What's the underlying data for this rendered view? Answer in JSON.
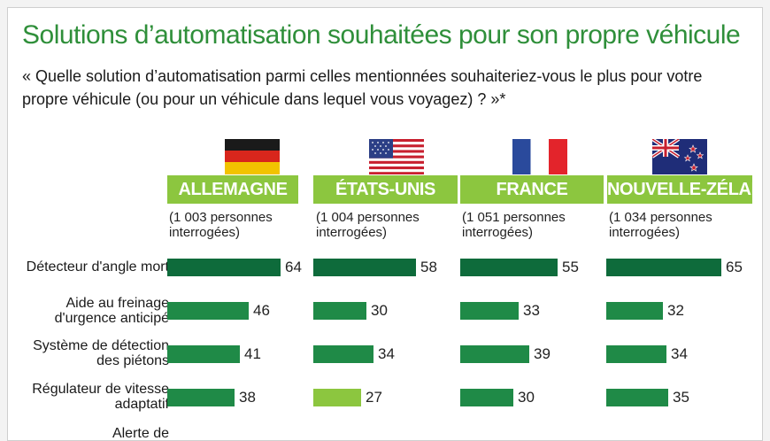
{
  "title": "Solutions d’automatisation souhaitées pour son propre véhicule",
  "question": "« Quelle solution d’automatisation parmi celles mentionnées souhaiteriez-vous le plus pour votre propre véhicule (ou pour un véhicule dans lequel vous voyagez) ? »*",
  "colors": {
    "title": "#2f8f3a",
    "header_bg": "#8cc63f",
    "bar_dark": "#0e6b3b",
    "bar_mid": "#1f8a47",
    "bar_light": "#8cc63f"
  },
  "chart_data": {
    "type": "bar",
    "orientation": "horizontal",
    "categories": [
      "Détecteur d'angle mort",
      "Aide au freinage d'urgence anticipé",
      "Système de détection des piétons",
      "Régulateur de vitesse adaptatif",
      "Alerte de franchissement"
    ],
    "series": [
      {
        "name": "ALLEMAGNE",
        "respondents": "(1 003 personnes interrogées)",
        "flag": "germany-flag-icon",
        "values": [
          64,
          46,
          41,
          38,
          null
        ]
      },
      {
        "name": "ÉTATS-UNIS",
        "respondents": "(1 004 personnes interrogées)",
        "flag": "usa-flag-icon",
        "values": [
          58,
          30,
          34,
          27,
          null
        ]
      },
      {
        "name": "FRANCE",
        "respondents": "(1 051 personnes interrogées)",
        "flag": "france-flag-icon",
        "values": [
          55,
          33,
          39,
          30,
          null
        ]
      },
      {
        "name": "NOUVELLE-ZÉLANDE",
        "respondents": "(1 034 personnes interrogées)",
        "flag": "new-zealand-flag-icon",
        "values": [
          65,
          32,
          34,
          35,
          null
        ]
      }
    ]
  }
}
